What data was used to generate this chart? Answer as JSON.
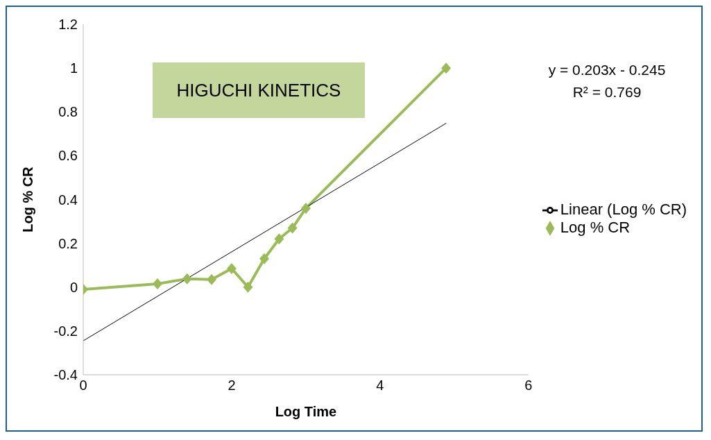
{
  "chart_data": {
    "type": "line",
    "title": "HIGUCHI KINETICS",
    "xlabel": "Log Time",
    "ylabel": "Log % CR",
    "x": [
      0,
      1.0,
      1.4,
      1.73,
      2.0,
      2.22,
      2.44,
      2.64,
      2.82,
      3.0,
      4.89
    ],
    "series": [
      {
        "name": "Log % CR",
        "color": "#9bbb59",
        "values": [
          -0.01,
          0.015,
          0.038,
          0.035,
          0.085,
          0,
          0.13,
          0.22,
          0.27,
          0.36,
          1.0
        ],
        "marker": "diamond"
      },
      {
        "name": "Linear (Log % CR)",
        "type": "line",
        "color": "#000000",
        "x": [
          0,
          4.89
        ],
        "values": [
          -0.245,
          0.748
        ],
        "marker": "none"
      }
    ],
    "xlim": [
      0,
      6
    ],
    "xticks": [
      0,
      2,
      4,
      6
    ],
    "ylim": [
      -0.4,
      1.2
    ],
    "yticks": [
      -0.4,
      -0.2,
      0,
      0.2,
      0.4,
      0.6,
      0.8,
      1,
      1.2
    ],
    "grid": false,
    "legend": "right",
    "annotations": [
      "y = 0.203x - 0.245",
      "R² = 0.769"
    ]
  }
}
